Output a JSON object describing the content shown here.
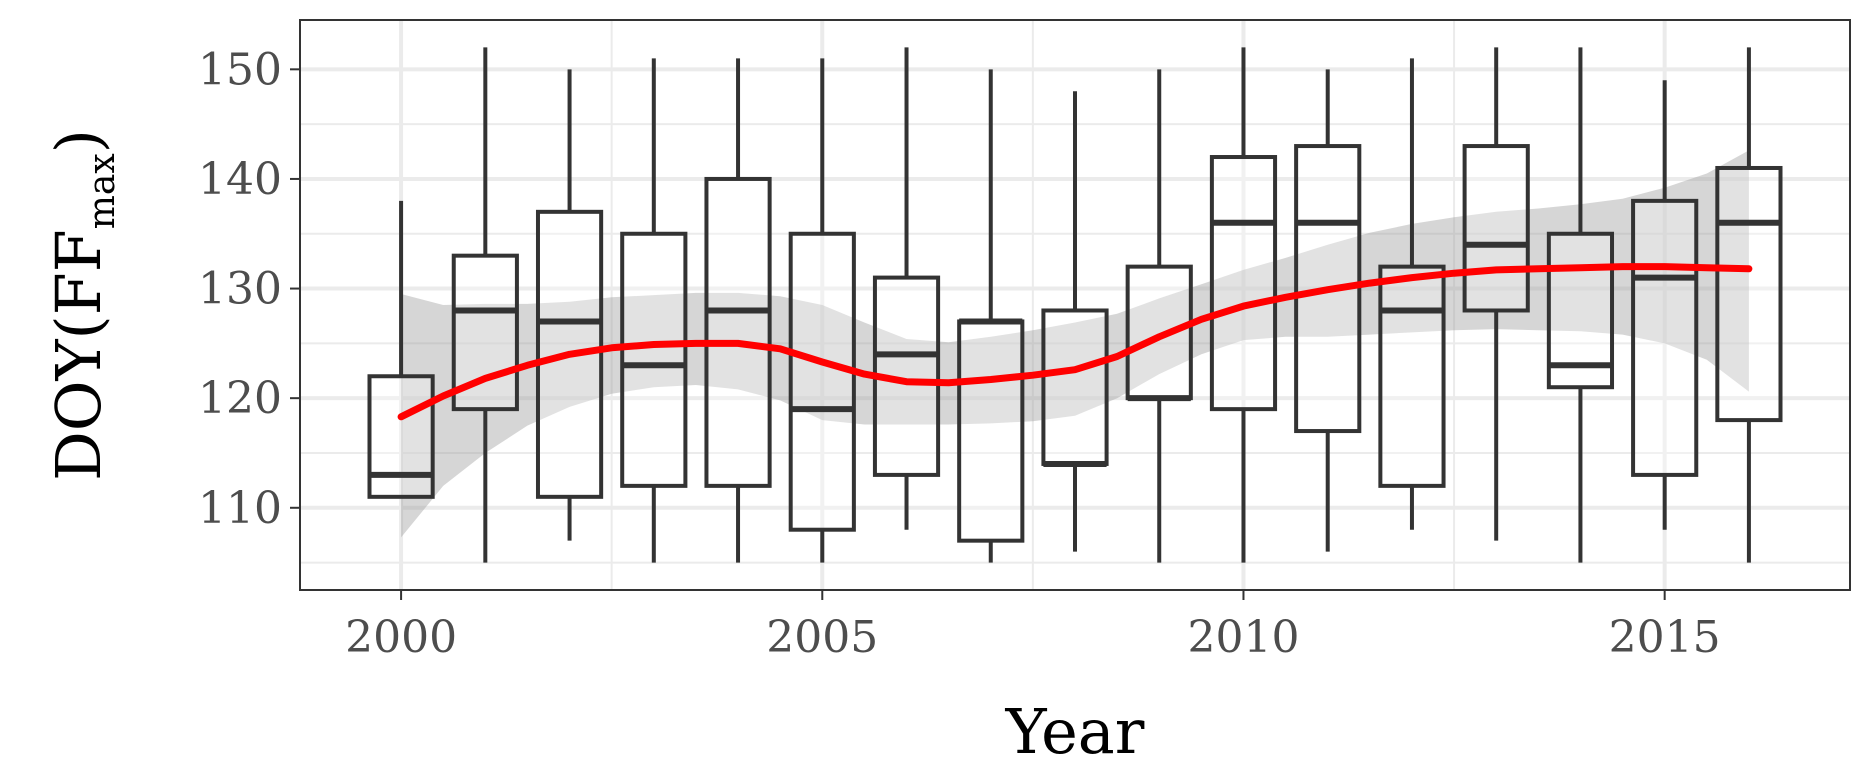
{
  "chart_data": {
    "type": "box",
    "xlabel": "Year",
    "ylabel": {
      "prefix": "DOY",
      "open": "(",
      "main": "FF",
      "subscript": "max",
      "close": ")"
    },
    "xlim": [
      1998.8,
      2017.2
    ],
    "ylim": [
      102.5,
      154.5
    ],
    "x_ticks": [
      2000,
      2005,
      2010,
      2015
    ],
    "x_tick_labels": [
      "2000",
      "2005",
      "2010",
      "2015"
    ],
    "y_ticks": [
      110,
      120,
      130,
      140,
      150
    ],
    "y_tick_labels": [
      "110",
      "120",
      "130",
      "140",
      "150"
    ],
    "grid": true,
    "boxes": [
      {
        "x": 2000,
        "low": 111,
        "q1": 111,
        "median": 113,
        "q3": 122,
        "high": 138
      },
      {
        "x": 2001,
        "low": 105,
        "q1": 119,
        "median": 128,
        "q3": 133,
        "high": 152
      },
      {
        "x": 2002,
        "low": 107,
        "q1": 111,
        "median": 127,
        "q3": 137,
        "high": 150
      },
      {
        "x": 2003,
        "low": 105,
        "q1": 112,
        "median": 123,
        "q3": 135,
        "high": 151
      },
      {
        "x": 2004,
        "low": 105,
        "q1": 112,
        "median": 128,
        "q3": 140,
        "high": 151
      },
      {
        "x": 2005,
        "low": 105,
        "q1": 108,
        "median": 119,
        "q3": 135,
        "high": 151
      },
      {
        "x": 2006,
        "low": 108,
        "q1": 113,
        "median": 124,
        "q3": 131,
        "high": 152
      },
      {
        "x": 2007,
        "low": 105,
        "q1": 107,
        "median": 127,
        "q3": 127,
        "high": 150
      },
      {
        "x": 2008,
        "low": 106,
        "q1": 114,
        "median": 114,
        "q3": 128,
        "high": 148
      },
      {
        "x": 2009,
        "low": 105,
        "q1": 120,
        "median": 120,
        "q3": 132,
        "high": 150
      },
      {
        "x": 2010,
        "low": 105,
        "q1": 119,
        "median": 136,
        "q3": 142,
        "high": 152
      },
      {
        "x": 2011,
        "low": 106,
        "q1": 117,
        "median": 136,
        "q3": 143,
        "high": 150
      },
      {
        "x": 2012,
        "low": 108,
        "q1": 112,
        "median": 128,
        "q3": 132,
        "high": 151
      },
      {
        "x": 2013,
        "low": 107,
        "q1": 128,
        "median": 134,
        "q3": 143,
        "high": 152
      },
      {
        "x": 2014,
        "low": 105,
        "q1": 121,
        "median": 123,
        "q3": 135,
        "high": 152
      },
      {
        "x": 2015,
        "low": 108,
        "q1": 113,
        "median": 131,
        "q3": 138,
        "high": 149
      },
      {
        "x": 2016,
        "low": 105,
        "q1": 118,
        "median": 136,
        "q3": 141,
        "high": 152
      }
    ],
    "smooth_line": {
      "color": "#ff0000",
      "points": [
        [
          2000,
          118.3
        ],
        [
          2000.5,
          120.2
        ],
        [
          2001,
          121.8
        ],
        [
          2001.5,
          123.0
        ],
        [
          2002,
          124.0
        ],
        [
          2002.5,
          124.6
        ],
        [
          2003,
          124.9
        ],
        [
          2003.5,
          125.0
        ],
        [
          2004,
          125.0
        ],
        [
          2004.5,
          124.5
        ],
        [
          2005,
          123.3
        ],
        [
          2005.5,
          122.2
        ],
        [
          2006,
          121.5
        ],
        [
          2006.5,
          121.4
        ],
        [
          2007,
          121.7
        ],
        [
          2007.5,
          122.1
        ],
        [
          2008,
          122.6
        ],
        [
          2008.5,
          123.8
        ],
        [
          2009,
          125.6
        ],
        [
          2009.5,
          127.2
        ],
        [
          2010,
          128.4
        ],
        [
          2010.5,
          129.2
        ],
        [
          2011,
          129.9
        ],
        [
          2011.5,
          130.5
        ],
        [
          2012,
          131.0
        ],
        [
          2012.5,
          131.4
        ],
        [
          2013,
          131.7
        ],
        [
          2013.5,
          131.8
        ],
        [
          2014,
          131.9
        ],
        [
          2014.5,
          132.0
        ],
        [
          2015,
          132.0
        ],
        [
          2015.5,
          131.9
        ],
        [
          2016,
          131.8
        ]
      ]
    },
    "confidence_band": {
      "color": "#999999",
      "x": [
        2000,
        2000.5,
        2001,
        2001.5,
        2002,
        2002.5,
        2003,
        2003.5,
        2004,
        2004.5,
        2005,
        2005.5,
        2006,
        2006.5,
        2007,
        2007.5,
        2008,
        2008.5,
        2009,
        2009.5,
        2010,
        2010.5,
        2011,
        2011.5,
        2012,
        2012.5,
        2013,
        2013.5,
        2014,
        2014.5,
        2015,
        2015.5,
        2016
      ],
      "lower": [
        107.3,
        112.0,
        115.0,
        117.5,
        119.2,
        120.4,
        121.0,
        121.2,
        120.8,
        119.8,
        118.0,
        117.6,
        117.6,
        117.6,
        117.7,
        117.9,
        118.4,
        120.0,
        122.2,
        124.0,
        125.3,
        125.6,
        125.6,
        125.8,
        126.0,
        126.2,
        126.3,
        126.2,
        126.1,
        125.8,
        125.0,
        123.5,
        120.6
      ],
      "upper": [
        129.5,
        128.5,
        128.6,
        128.6,
        128.8,
        129.2,
        129.4,
        129.6,
        129.6,
        129.3,
        128.5,
        126.9,
        125.4,
        125.1,
        125.6,
        126.2,
        126.9,
        127.7,
        129.1,
        130.4,
        131.7,
        132.8,
        134.0,
        135.1,
        135.9,
        136.5,
        137.0,
        137.3,
        137.7,
        138.2,
        139.2,
        140.5,
        142.6
      ]
    }
  }
}
